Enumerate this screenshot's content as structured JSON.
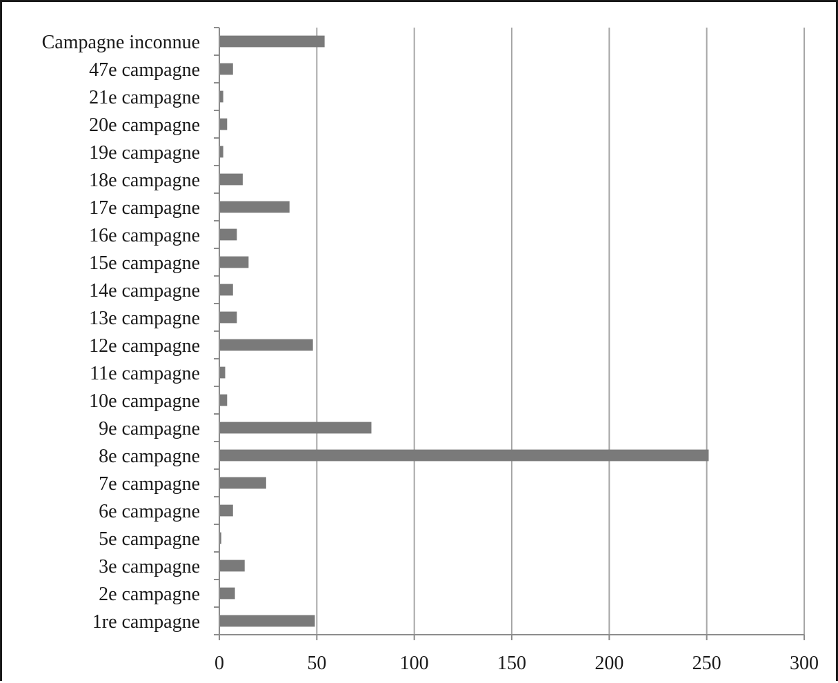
{
  "chart_data": {
    "type": "bar",
    "orientation": "horizontal",
    "title": "",
    "xlabel": "",
    "ylabel": "",
    "categories": [
      "Campagne inconnue",
      "47e campagne",
      "21e campagne",
      "20e campagne",
      "19e campagne",
      "18e campagne",
      "17e campagne",
      "16e campagne",
      "15e campagne",
      "14e campagne",
      "13e campagne",
      "12e campagne",
      "11e campagne",
      "10e campagne",
      "9e campagne",
      "8e campagne",
      "7e campagne",
      "6e campagne",
      "5e campagne",
      "3e campagne",
      "2e campagne",
      "1re campagne"
    ],
    "values": [
      54,
      7,
      2,
      4,
      2,
      12,
      36,
      9,
      15,
      7,
      9,
      48,
      3,
      4,
      78,
      251,
      24,
      7,
      1,
      13,
      8,
      49
    ],
    "xlim": [
      0,
      300
    ],
    "xticks": [
      0,
      50,
      100,
      150,
      200,
      250,
      300
    ],
    "grid": "vertical",
    "legend": "none",
    "colors": {
      "bar": "#7a7a7a",
      "grid": "#a6a6a6",
      "axis": "#8c8c8c",
      "text": "#1a1a1a",
      "frame": "#1a1a1a"
    }
  }
}
